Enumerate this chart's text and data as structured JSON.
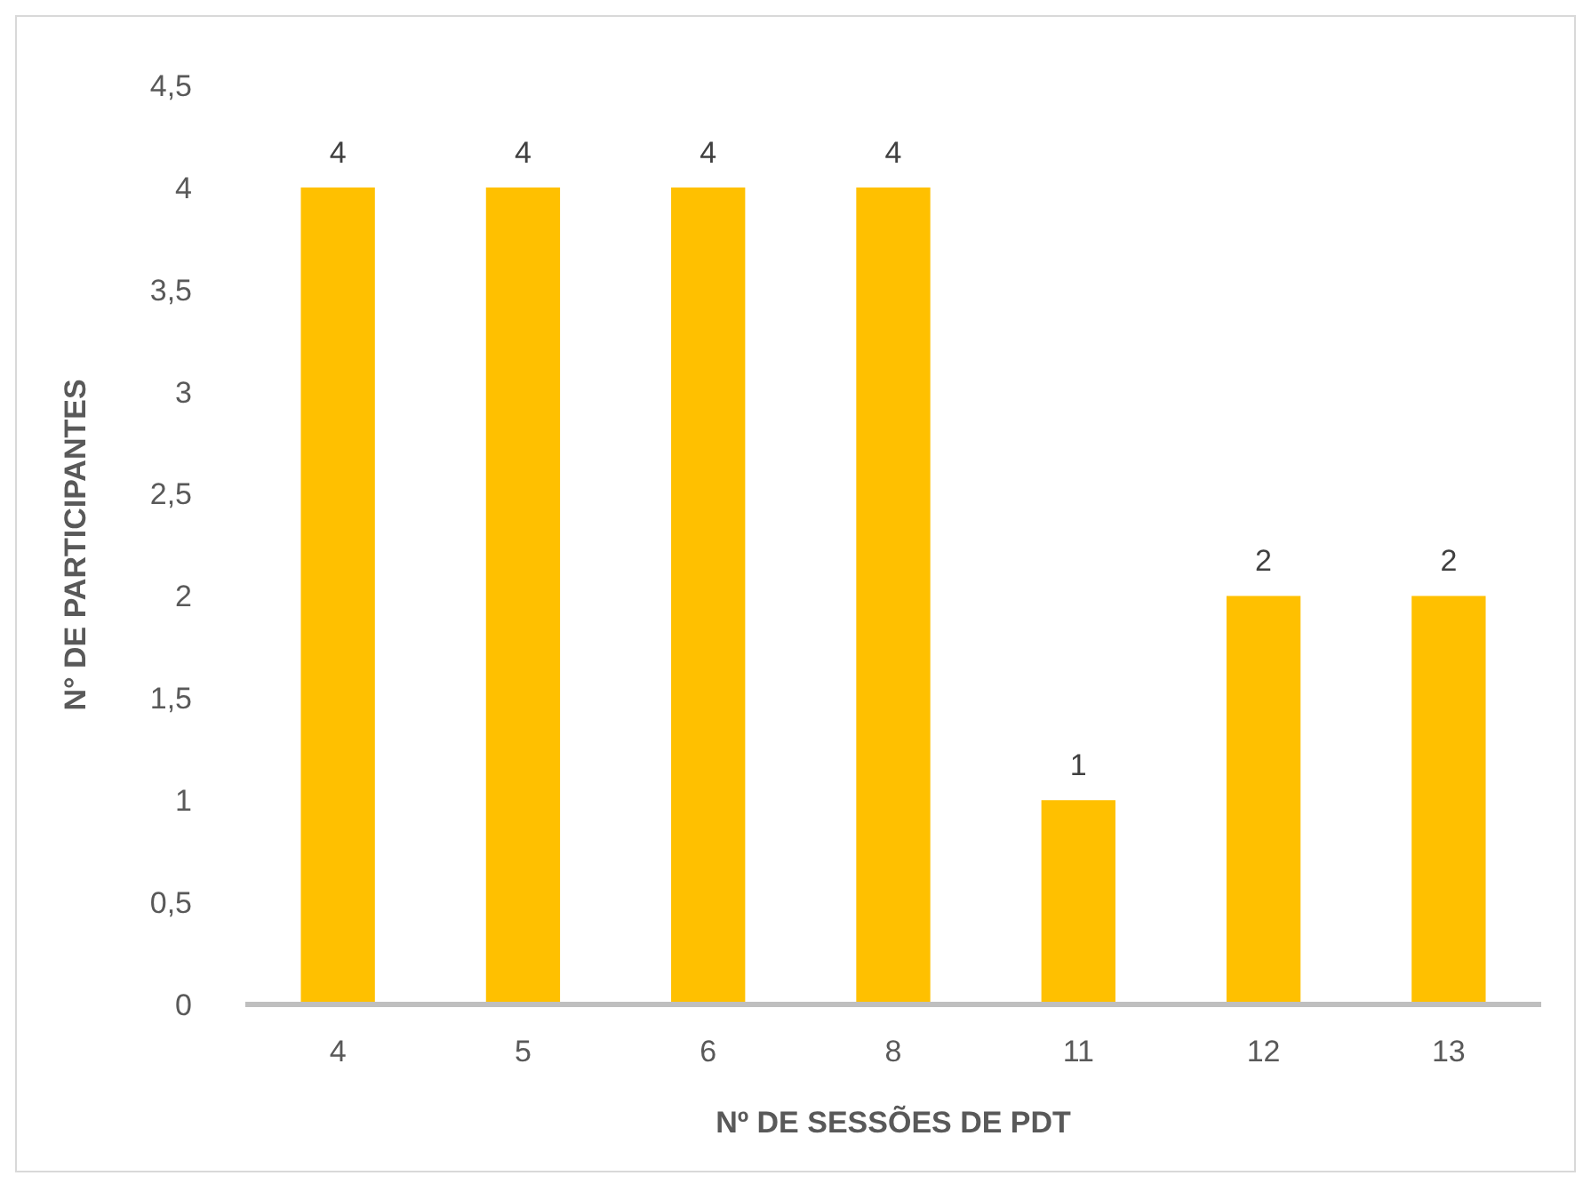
{
  "chart_data": {
    "type": "bar",
    "xlabel": "Nº DE SESSÕES DE PDT",
    "ylabel": "N° DE PARTICIPANTES",
    "categories": [
      "4",
      "5",
      "6",
      "8",
      "11",
      "12",
      "13"
    ],
    "values": [
      4,
      4,
      4,
      4,
      1,
      2,
      2
    ],
    "color": "#ffc000",
    "ylim": [
      0,
      4.5
    ],
    "yticks": [
      0,
      {
        "value": 0.5,
        "label": "0,5"
      },
      1,
      {
        "value": 1.5,
        "label": "1,5"
      },
      2,
      {
        "value": 2.5,
        "label": "2,5"
      },
      3,
      {
        "value": 3.5,
        "label": "3,5"
      },
      4,
      {
        "value": 4.5,
        "label": "4,5"
      }
    ],
    "grid": false,
    "data_labels": true
  }
}
